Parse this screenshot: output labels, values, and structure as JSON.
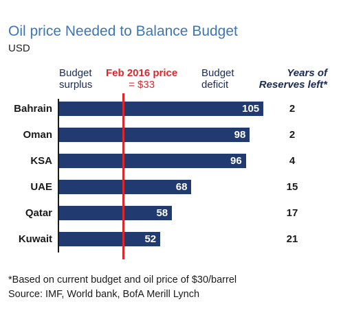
{
  "title": "Oil price Needed to Balance Budget",
  "subtitle": "USD",
  "headers": {
    "surplus_line1": "Budget",
    "surplus_line2": "surplus",
    "price_line1": "Feb 2016 price",
    "price_line2": "= $33",
    "deficit_line1": "Budget",
    "deficit_line2": "deficit",
    "reserves_line1": "Years of",
    "reserves_line2": "Reserves left*"
  },
  "chart_data": {
    "type": "bar",
    "orientation": "horizontal",
    "categories": [
      "Bahrain",
      "Oman",
      "KSA",
      "UAE",
      "Qatar",
      "Kuwait"
    ],
    "values": [
      105,
      98,
      96,
      68,
      58,
      52
    ],
    "reference_line": {
      "label": "Feb 2016 price = $33",
      "value": 33
    },
    "years_of_reserves_left": [
      "2",
      "2",
      "4",
      "15",
      "17",
      "21"
    ],
    "xlim": [
      0,
      120
    ],
    "unit": "USD",
    "grid": false
  },
  "colors": {
    "title": "#3b76b8",
    "bar": "#213a70",
    "reference_line": "#d9292c",
    "header": "#1b2a55"
  },
  "footnote": {
    "line1": "*Based on current budget and oil price of $30/barrel",
    "line2": "Source:  IMF, World bank,  BofA Merill Lynch"
  }
}
